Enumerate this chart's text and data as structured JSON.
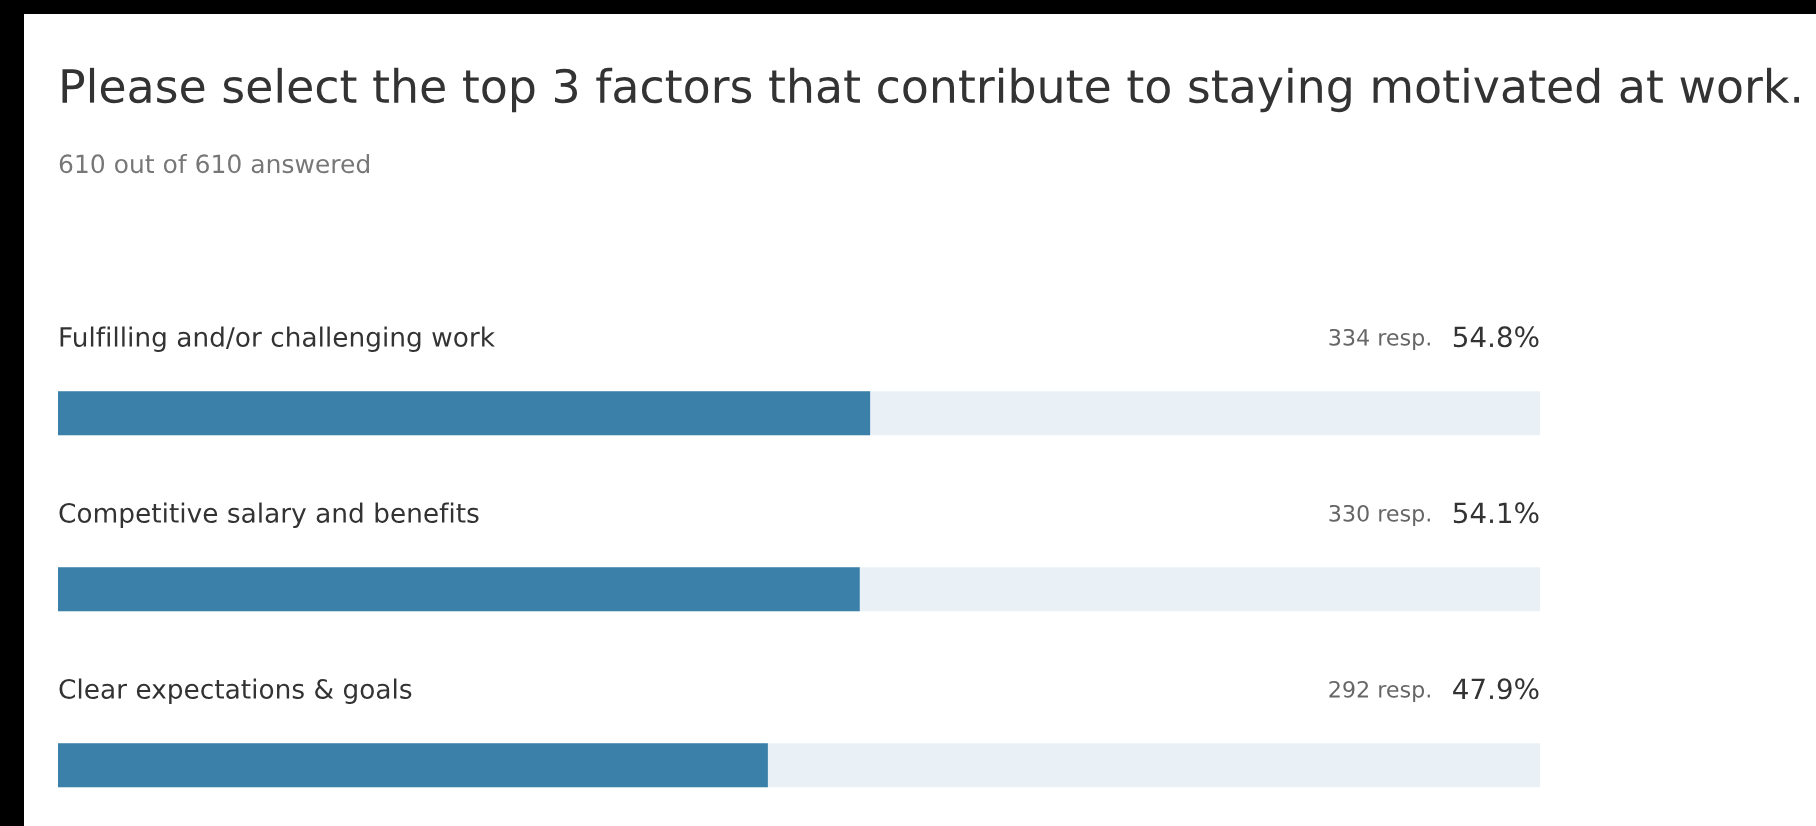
{
  "chart_data": {
    "type": "bar",
    "orientation": "horizontal",
    "title": "Please select the top 3 factors that contribute to staying motivated at work.",
    "subtitle": "610 out of 610 answered",
    "categories": [
      "Fulfilling and/or challenging work",
      "Competitive salary and benefits",
      "Clear expectations & goals"
    ],
    "series": [
      {
        "color": "#3b80a8",
        "values": [
          54.8,
          54.1,
          47.9
        ],
        "value_labels": [
          "54.8%",
          "54.1%",
          "47.9%"
        ]
      }
    ],
    "annotations": [
      "334 resp.",
      "330 resp.",
      "292 resp."
    ],
    "bands": [
      {
        "axis": "x",
        "from": 0,
        "to": 100,
        "color": "#e9f1f6"
      }
    ]
  }
}
